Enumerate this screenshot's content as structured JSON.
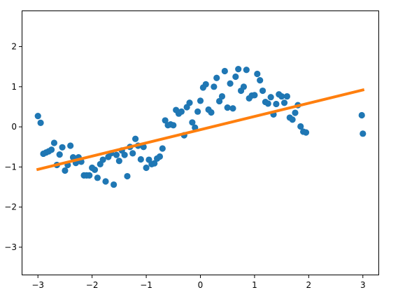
{
  "chart_data": {
    "type": "scatter",
    "title": "",
    "xlabel": "",
    "ylabel": "",
    "xlim": [
      -3.3,
      3.3
    ],
    "ylim": [
      -3.7,
      2.9
    ],
    "grid": false,
    "legend": "none",
    "x_ticks": [
      -3,
      -2,
      -1,
      0,
      1,
      2,
      3
    ],
    "x_tick_labels": [
      "−3",
      "−2",
      "−1",
      "0",
      "1",
      "2",
      "3"
    ],
    "y_ticks": [
      -3,
      -2,
      -1,
      0,
      1,
      2
    ],
    "y_tick_labels": [
      "−3",
      "−2",
      "−1",
      "0",
      "1",
      "2"
    ],
    "colors": {
      "scatter": "#1f77b4",
      "line": "#ff7f0e",
      "axes": "#000000",
      "background": "#ffffff"
    },
    "series": [
      {
        "type": "scatter",
        "points": [
          [
            -3.0,
            0.27
          ],
          [
            -2.95,
            0.1
          ],
          [
            -2.9,
            -0.67
          ],
          [
            -2.85,
            -0.64
          ],
          [
            -2.8,
            -0.61
          ],
          [
            -2.75,
            -0.57
          ],
          [
            -2.7,
            -0.4
          ],
          [
            -2.65,
            -0.95
          ],
          [
            -2.6,
            -0.69
          ],
          [
            -2.55,
            -0.51
          ],
          [
            -2.5,
            -1.09
          ],
          [
            -2.45,
            -0.95
          ],
          [
            -2.4,
            -0.47
          ],
          [
            -2.35,
            -0.76
          ],
          [
            -2.3,
            -0.9
          ],
          [
            -2.25,
            -0.76
          ],
          [
            -2.2,
            -0.87
          ],
          [
            -2.15,
            -1.21
          ],
          [
            -2.1,
            -1.21
          ],
          [
            -2.05,
            -1.21
          ],
          [
            -2.0,
            -1.02
          ],
          [
            -1.95,
            -1.07
          ],
          [
            -1.9,
            -1.27
          ],
          [
            -1.85,
            -0.93
          ],
          [
            -1.8,
            -0.82
          ],
          [
            -1.75,
            -1.36
          ],
          [
            -1.7,
            -0.75
          ],
          [
            -1.65,
            -0.66
          ],
          [
            -1.6,
            -1.44
          ],
          [
            -1.55,
            -0.7
          ],
          [
            -1.5,
            -0.85
          ],
          [
            -1.45,
            -0.59
          ],
          [
            -1.4,
            -0.7
          ],
          [
            -1.35,
            -1.23
          ],
          [
            -1.3,
            -0.5
          ],
          [
            -1.25,
            -0.66
          ],
          [
            -1.2,
            -0.3
          ],
          [
            -1.15,
            -0.47
          ],
          [
            -1.1,
            -0.81
          ],
          [
            -1.05,
            -0.5
          ],
          [
            -1.0,
            -1.02
          ],
          [
            -0.95,
            -0.82
          ],
          [
            -0.9,
            -0.93
          ],
          [
            -0.85,
            -0.91
          ],
          [
            -0.8,
            -0.79
          ],
          [
            -0.75,
            -0.74
          ],
          [
            -0.7,
            -0.54
          ],
          [
            -0.65,
            0.16
          ],
          [
            -0.6,
            0.04
          ],
          [
            -0.55,
            0.06
          ],
          [
            -0.5,
            0.04
          ],
          [
            -0.45,
            0.42
          ],
          [
            -0.4,
            0.33
          ],
          [
            -0.35,
            0.38
          ],
          [
            -0.3,
            -0.21
          ],
          [
            -0.25,
            0.49
          ],
          [
            -0.2,
            0.6
          ],
          [
            -0.15,
            0.11
          ],
          [
            -0.1,
            -0.02
          ],
          [
            -0.05,
            0.38
          ],
          [
            0.0,
            0.65
          ],
          [
            0.05,
            0.98
          ],
          [
            0.1,
            1.06
          ],
          [
            0.15,
            0.43
          ],
          [
            0.2,
            0.36
          ],
          [
            0.25,
            1.0
          ],
          [
            0.3,
            1.22
          ],
          [
            0.35,
            0.64
          ],
          [
            0.4,
            0.76
          ],
          [
            0.45,
            1.39
          ],
          [
            0.5,
            0.48
          ],
          [
            0.55,
            1.08
          ],
          [
            0.6,
            0.46
          ],
          [
            0.65,
            1.25
          ],
          [
            0.7,
            1.44
          ],
          [
            0.75,
            0.9
          ],
          [
            0.8,
            1.0
          ],
          [
            0.85,
            1.42
          ],
          [
            0.9,
            0.71
          ],
          [
            0.95,
            0.78
          ],
          [
            1.0,
            0.79
          ],
          [
            1.05,
            1.32
          ],
          [
            1.1,
            1.16
          ],
          [
            1.15,
            0.9
          ],
          [
            1.2,
            0.62
          ],
          [
            1.25,
            0.58
          ],
          [
            1.3,
            0.74
          ],
          [
            1.35,
            0.31
          ],
          [
            1.4,
            0.57
          ],
          [
            1.45,
            0.81
          ],
          [
            1.5,
            0.76
          ],
          [
            1.55,
            0.6
          ],
          [
            1.6,
            0.76
          ],
          [
            1.65,
            0.23
          ],
          [
            1.7,
            0.18
          ],
          [
            1.75,
            0.35
          ],
          [
            1.8,
            0.54
          ],
          [
            1.85,
            0.01
          ],
          [
            1.9,
            -0.12
          ],
          [
            1.95,
            -0.14
          ],
          [
            3.0,
            -0.17
          ],
          [
            2.98,
            0.29
          ]
        ]
      },
      {
        "type": "line",
        "x": [
          -3.0,
          3.0
        ],
        "y": [
          -1.06,
          0.92
        ]
      }
    ]
  }
}
